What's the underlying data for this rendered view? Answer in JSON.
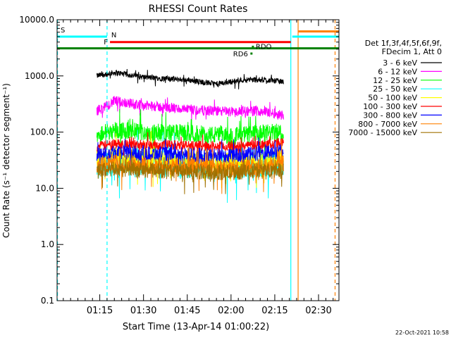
{
  "chart_data": {
    "type": "line",
    "title": "RHESSI Count Rates",
    "xlabel": "Start Time (13-Apr-14 01:00:22)",
    "ylabel": "Count Rate (s⁻¹ detector segment⁻¹)",
    "y_scale": "log",
    "ylim": [
      0.1,
      10000.0
    ],
    "xlim": [
      "01:00:22",
      "02:37:00"
    ],
    "x_ticks": [
      "01:15",
      "01:30",
      "01:45",
      "02:00",
      "02:15",
      "02:30"
    ],
    "y_ticks": [
      "0.1",
      "1.0",
      "10.0",
      "100.0",
      "1000.0",
      "10000.0"
    ],
    "grid": false,
    "legend_position": "right",
    "legend_header": [
      "Det 1f,3f,4f,5f,6f,9f,",
      "FDecim 1, Att 0"
    ],
    "series": [
      {
        "name": "3 - 6 keV",
        "color": "#000000",
        "x": [
          "01:14",
          "01:20",
          "01:30",
          "01:45",
          "01:55",
          "02:05",
          "02:14",
          "02:18"
        ],
        "values": [
          1000,
          1150,
          950,
          850,
          720,
          860,
          840,
          780
        ]
      },
      {
        "name": "6 - 12 keV",
        "color": "#ff00ff",
        "x": [
          "01:14",
          "01:17",
          "01:20",
          "01:30",
          "01:45",
          "02:00",
          "02:10",
          "02:18"
        ],
        "values": [
          240,
          280,
          360,
          300,
          250,
          230,
          240,
          200
        ]
      },
      {
        "name": "12 - 25 keV",
        "color": "#00ff00",
        "x": [
          "01:14",
          "01:20",
          "01:30",
          "01:45",
          "02:00",
          "02:10",
          "02:18"
        ],
        "values": [
          90,
          110,
          100,
          95,
          85,
          95,
          100
        ]
      },
      {
        "name": "25 - 50 keV",
        "color": "#00ffff",
        "x": [
          "01:14",
          "01:20",
          "01:30",
          "01:45",
          "02:00",
          "02:10",
          "02:18"
        ],
        "values": [
          25,
          30,
          28,
          25,
          24,
          26,
          28
        ]
      },
      {
        "name": "50 - 100 keV",
        "color": "#ffff00",
        "x": [
          "01:14",
          "01:20",
          "01:30",
          "01:45",
          "02:00",
          "02:10",
          "02:18"
        ],
        "values": [
          30,
          35,
          32,
          30,
          28,
          30,
          32
        ]
      },
      {
        "name": "100 - 300 keV",
        "color": "#ff0000",
        "x": [
          "01:14",
          "01:20",
          "01:30",
          "01:45",
          "02:00",
          "02:10",
          "02:18"
        ],
        "values": [
          55,
          62,
          60,
          58,
          55,
          60,
          65
        ]
      },
      {
        "name": "300 - 800 keV",
        "color": "#0000ff",
        "x": [
          "01:14",
          "01:20",
          "01:30",
          "01:45",
          "02:00",
          "02:10",
          "02:18"
        ],
        "values": [
          40,
          45,
          42,
          40,
          38,
          42,
          45
        ]
      },
      {
        "name": "800 - 7000 keV",
        "color": "#ff8000",
        "x": [
          "01:14",
          "01:20",
          "01:30",
          "01:45",
          "02:00",
          "02:10",
          "02:18"
        ],
        "values": [
          25,
          28,
          26,
          24,
          22,
          25,
          28
        ]
      },
      {
        "name": "7000 - 15000 keV",
        "color": "#a07000",
        "x": [
          "01:14",
          "01:20",
          "01:30",
          "01:45",
          "02:00",
          "02:10",
          "02:18"
        ],
        "values": [
          20,
          22,
          21,
          20,
          19,
          21,
          22
        ]
      }
    ],
    "flags": [
      {
        "label": "S",
        "color": "#00ffff",
        "level": 5000,
        "x_start": "01:00:22",
        "x_end": "01:17:30",
        "text_color": "#ff8000"
      },
      {
        "label": "N",
        "color": "#00ffff",
        "level": 5000,
        "x_start": "02:21:00",
        "x_end": "02:37:00",
        "text_color": "#00ffff"
      },
      {
        "label": "F",
        "color": "#ff0000",
        "level": 4000,
        "x_start": "01:18:30",
        "x_end": "02:20:30",
        "text_color": "#ff0000"
      },
      {
        "label": "",
        "color": "#ff8000",
        "level": 6200,
        "x_start": "02:23:00",
        "x_end": "02:37:00",
        "text_color": "#ff8000"
      },
      {
        "label": "",
        "color": "#008000",
        "level": 3100,
        "x_start": "01:00:22",
        "x_end": "02:37:00",
        "text_color": "#008000"
      },
      {
        "label": "RDO",
        "color": "#008000",
        "level": 3300,
        "x_start": "02:07:30",
        "x_end": "02:07:30",
        "text_color": "#008000"
      },
      {
        "label": "RD6",
        "color": "#008000",
        "level": 2500,
        "x_start": "02:07:00",
        "x_end": "02:07:00",
        "text_color": "#008000"
      }
    ],
    "vlines": [
      {
        "x": "01:00:30",
        "color": "#00ffff",
        "style": "dashed"
      },
      {
        "x": "01:17:30",
        "color": "#00ffff",
        "style": "dashed"
      },
      {
        "x": "02:20:30",
        "color": "#00ffff",
        "style": "solid"
      },
      {
        "x": "02:23:00",
        "color": "#ff8000",
        "style": "solid"
      },
      {
        "x": "02:35:40",
        "color": "#ff8000",
        "style": "dashed"
      }
    ],
    "timestamp": "22-Oct-2021 10:58"
  }
}
